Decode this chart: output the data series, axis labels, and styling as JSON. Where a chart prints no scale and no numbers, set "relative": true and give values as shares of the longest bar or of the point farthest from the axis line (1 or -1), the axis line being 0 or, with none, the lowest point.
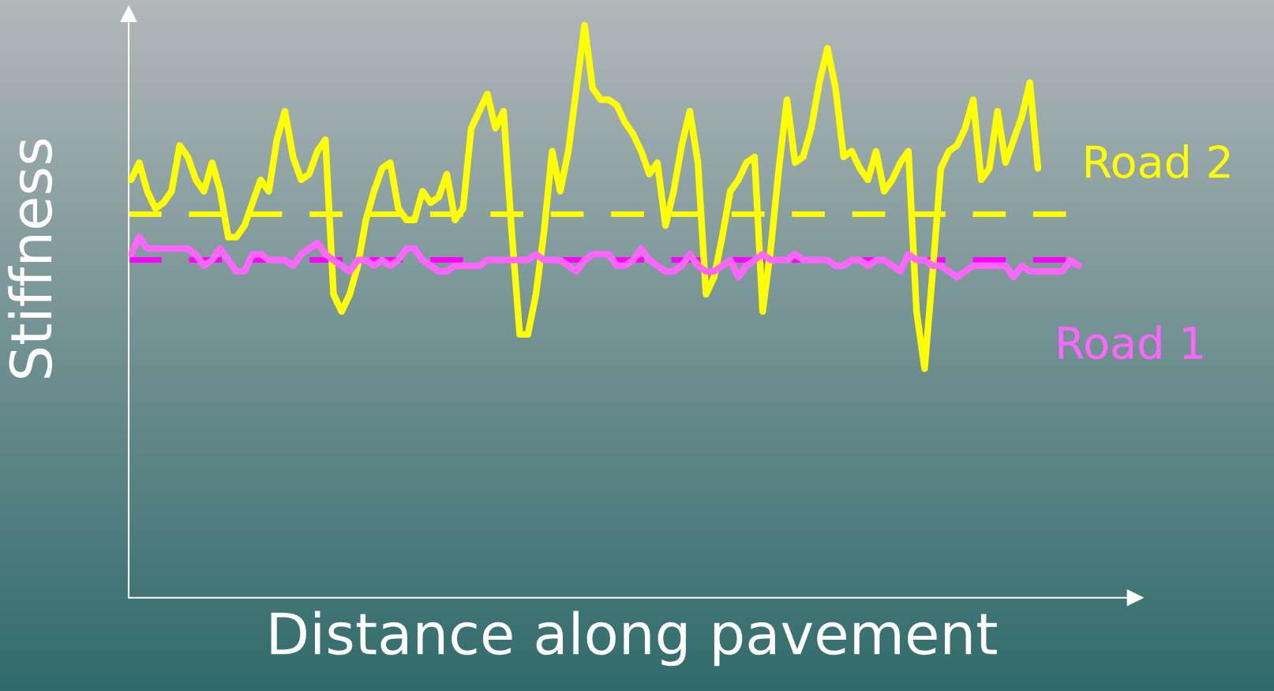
{
  "chart_data": {
    "type": "line",
    "relative": true,
    "xlabel": "Distance along pavement",
    "ylabel": "Stiffness",
    "marker": "none",
    "line_style": "solid",
    "categories": [
      null,
      null,
      null,
      null,
      null,
      null,
      null,
      null,
      null,
      null,
      null,
      null,
      null,
      null,
      null,
      null,
      null,
      null,
      null,
      null,
      null,
      null,
      null,
      null,
      null,
      null,
      null,
      null,
      null,
      null,
      null,
      null,
      null,
      null,
      null,
      null,
      null,
      null,
      null,
      null,
      null,
      null,
      null,
      null,
      null,
      null,
      null,
      null,
      null,
      null,
      null,
      null,
      null,
      null,
      null,
      null,
      null,
      null,
      null,
      null,
      null,
      null,
      null,
      null,
      null,
      null,
      null,
      null,
      null,
      null,
      null,
      null,
      null,
      null,
      null,
      null,
      null,
      null,
      null,
      null,
      null,
      null,
      null,
      null,
      null,
      null,
      null,
      null,
      null,
      null,
      null,
      null,
      null,
      null,
      null,
      null,
      null,
      null,
      null,
      null,
      null,
      null,
      null,
      null,
      null,
      null,
      null,
      null,
      null,
      null,
      null,
      null,
      null,
      null,
      null,
      null,
      null,
      null
    ],
    "series": [
      {
        "name": "Road 2",
        "color": "#ffff00",
        "values": [
          0.73,
          0.76,
          0.71,
          0.68,
          0.69,
          0.71,
          0.79,
          0.77,
          0.73,
          0.71,
          0.76,
          0.71,
          0.63,
          0.63,
          0.65,
          0.69,
          0.73,
          0.71,
          0.8,
          0.85,
          0.77,
          0.73,
          0.74,
          0.78,
          0.8,
          0.53,
          0.5,
          0.53,
          0.58,
          0.66,
          0.71,
          0.75,
          0.76,
          0.68,
          0.66,
          0.66,
          0.71,
          0.69,
          0.7,
          0.74,
          0.66,
          0.68,
          0.82,
          0.85,
          0.88,
          0.82,
          0.85,
          0.64,
          0.46,
          0.46,
          0.53,
          0.64,
          0.78,
          0.71,
          0.78,
          0.89,
          1,
          0.89,
          0.87,
          0.87,
          0.86,
          0.83,
          0.81,
          0.78,
          0.74,
          0.76,
          0.65,
          0.71,
          0.79,
          0.85,
          0.76,
          0.53,
          0.56,
          0.63,
          0.71,
          0.73,
          0.76,
          0.77,
          0.5,
          0.61,
          0.75,
          0.87,
          0.76,
          0.77,
          0.82,
          0.9,
          0.96,
          0.89,
          0.77,
          0.78,
          0.75,
          0.73,
          0.78,
          0.71,
          0.73,
          0.76,
          0.78,
          0.5,
          0.4,
          0.57,
          0.75,
          0.78,
          0.79,
          0.82,
          0.87,
          0.73,
          0.75,
          0.85,
          0.76,
          0.8,
          0.84,
          0.9,
          0.75,
          null,
          null,
          null,
          null,
          null
        ]
      },
      {
        "name": "Road 1",
        "color": "#ff66ff",
        "values": [
          0.6,
          0.63,
          0.61,
          0.61,
          0.61,
          0.61,
          0.61,
          0.61,
          0.6,
          0.58,
          0.59,
          0.61,
          0.59,
          0.57,
          0.57,
          0.6,
          0.6,
          0.59,
          0.59,
          0.59,
          0.58,
          0.6,
          0.61,
          0.62,
          0.6,
          0.59,
          0.58,
          0.57,
          0.59,
          0.59,
          0.58,
          0.59,
          0.58,
          0.59,
          0.61,
          0.61,
          0.59,
          0.58,
          0.57,
          0.57,
          0.58,
          0.58,
          0.58,
          0.58,
          0.59,
          0.59,
          0.59,
          0.59,
          0.59,
          0.59,
          0.6,
          0.59,
          0.59,
          0.59,
          0.58,
          0.57,
          0.59,
          0.6,
          0.6,
          0.6,
          0.58,
          0.58,
          0.59,
          0.61,
          0.59,
          0.58,
          0.57,
          0.57,
          0.58,
          0.6,
          0.58,
          0.57,
          0.57,
          0.58,
          0.59,
          0.56,
          0.58,
          0.59,
          0.6,
          0.59,
          0.59,
          0.59,
          0.6,
          0.59,
          0.59,
          0.59,
          0.59,
          0.58,
          0.58,
          0.59,
          0.59,
          0.58,
          0.59,
          0.59,
          0.58,
          0.57,
          0.6,
          0.59,
          0.59,
          0.58,
          0.58,
          0.57,
          0.56,
          0.57,
          0.58,
          0.58,
          0.58,
          0.58,
          0.58,
          0.56,
          0.58,
          0.57,
          0.57,
          0.57,
          0.57,
          0.57,
          0.59,
          0.58
        ]
      }
    ],
    "ref_lines": [
      {
        "axis": "y",
        "value": 0.67,
        "color": "#ffff00",
        "line_style": "dashed"
      },
      {
        "axis": "y",
        "value": 0.59,
        "color": "#ff00ff",
        "line_style": "dashed"
      }
    ]
  }
}
